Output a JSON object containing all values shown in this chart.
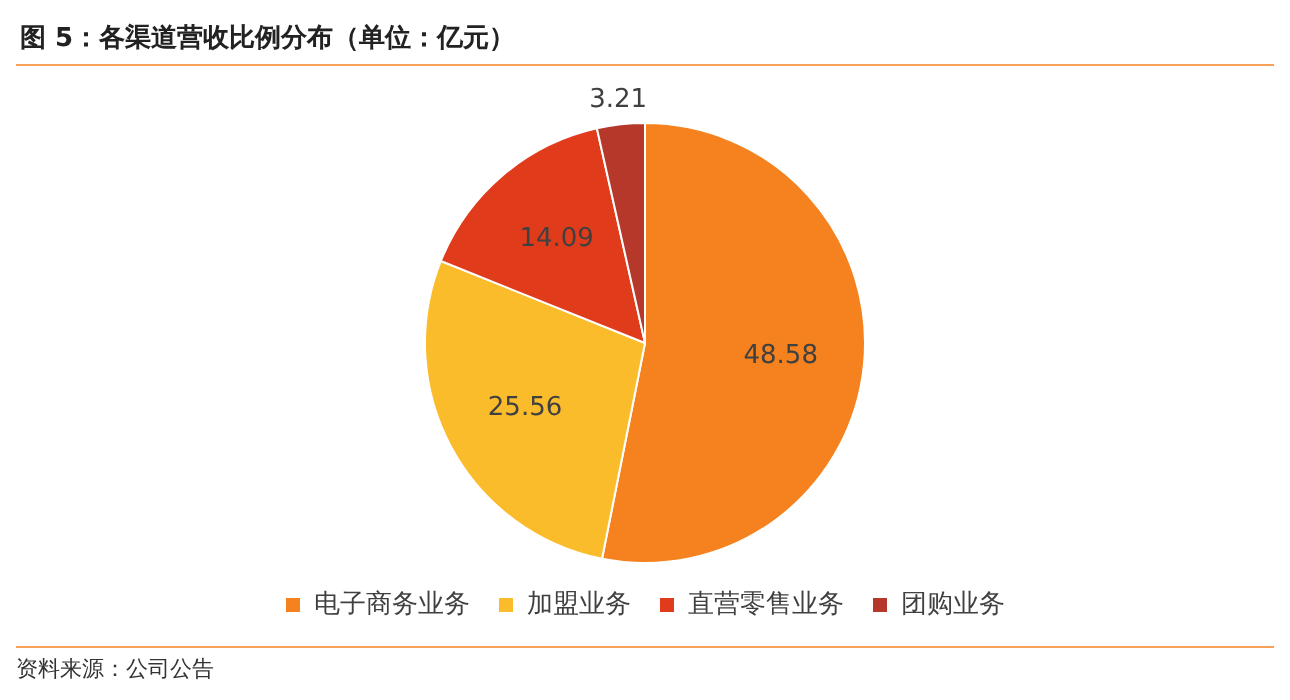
{
  "chart_data": {
    "type": "pie",
    "title": "图 5：各渠道营收比例分布（单位：亿元）",
    "categories": [
      "电子商务业务",
      "加盟业务",
      "直营零售业务",
      "团购业务"
    ],
    "values": [
      48.58,
      25.56,
      14.09,
      3.21
    ],
    "colors": [
      "#f5821f",
      "#fbbc2c",
      "#e03c1c",
      "#b5382a"
    ],
    "data_labels": true,
    "legend": "bottom",
    "annotations": [
      "资料来源：公司公告"
    ]
  }
}
